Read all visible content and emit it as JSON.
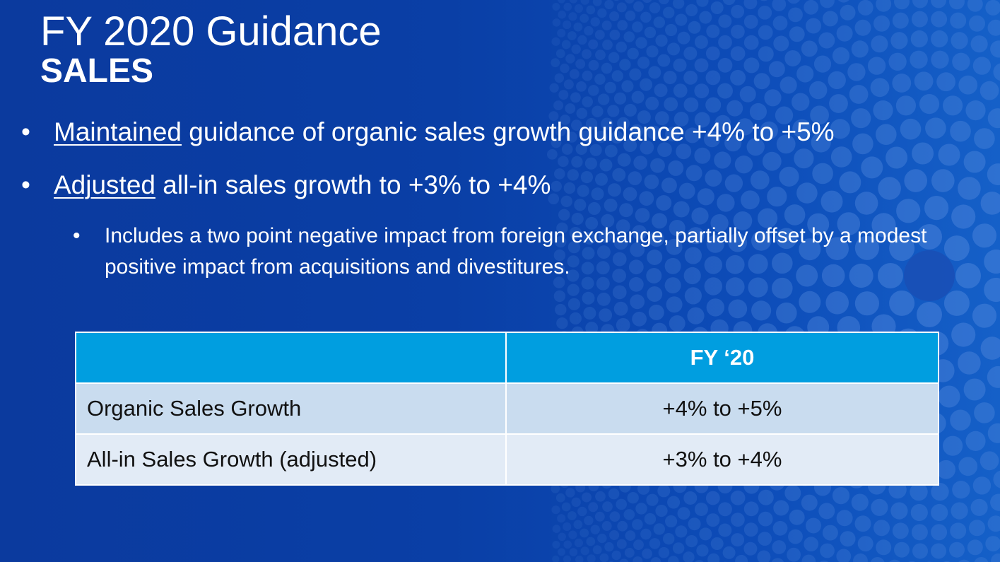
{
  "slide": {
    "title": "FY 2020 Guidance",
    "subtitle": "SALES"
  },
  "bullets": [
    {
      "marker": "•",
      "emphasis": "Maintained",
      "rest": " guidance of organic sales growth guidance +4% to +5%"
    },
    {
      "marker": "•",
      "emphasis": "Adjusted",
      "rest": " all-in sales growth to +3% to +4%"
    }
  ],
  "subbullet": {
    "marker": "•",
    "text": "Includes a two point negative impact from foreign exchange, partially offset by a modest positive impact from acquisitions and divestitures."
  },
  "table": {
    "header": [
      "",
      "FY ‘20"
    ],
    "rows": [
      {
        "label": "Organic Sales Growth",
        "value": "+4% to +5%"
      },
      {
        "label": "All-in Sales Growth (adjusted)",
        "value": "+3% to +4%"
      }
    ]
  },
  "colors": {
    "background": "#0a3fa6",
    "header_cell": "#009ee0",
    "row_a": "#c9dcef",
    "row_b": "#e2ebf6"
  }
}
